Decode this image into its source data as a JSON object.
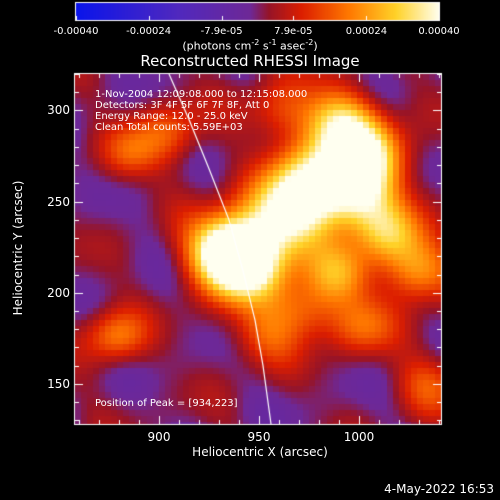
{
  "chart_data": {
    "type": "heatmap",
    "title": "Reconstructed RHESSI Image",
    "xlabel": "Heliocentric X (arcsec)",
    "ylabel": "Heliocentric Y (arcsec)",
    "xlim": [
      858,
      1041
    ],
    "ylim": [
      128,
      320
    ],
    "x_ticks": [
      "900",
      "950",
      "1000"
    ],
    "x_tick_values": [
      900,
      950,
      1000
    ],
    "y_ticks": [
      "150",
      "200",
      "250",
      "300"
    ],
    "y_tick_values": [
      150,
      200,
      250,
      300
    ],
    "colorbar": {
      "min": -0.0004,
      "max": 0.0004,
      "tick_labels": [
        "-0.00040",
        "-0.00024",
        "-7.9e-05",
        "7.9e-05",
        "0.00024",
        "0.00040"
      ],
      "tick_values": [
        -0.0004,
        -0.00024,
        -7.9e-05,
        7.9e-05,
        0.00024,
        0.0004
      ],
      "units_text": "(photons cm",
      "units_exp1": "-2",
      "units_mid": " s",
      "units_exp2": "-1",
      "units_end": " asec",
      "units_exp3": "-2",
      "units_close": ")"
    },
    "annotations": [
      "1-Nov-2004 12:09:08.000 to 12:15:08.000",
      "Detectors: 3F 4F 5F 6F 7F 8F, Att 0",
      "Energy Range: 12.0 - 25.0 keV",
      "Clean     Total counts: 5.59E+03"
    ],
    "peak_label": "Position of Peak = [934,223]",
    "peak": [
      934,
      223
    ],
    "limb_points": [
      [
        905,
        320
      ],
      [
        915,
        295
      ],
      [
        925,
        268
      ],
      [
        935,
        240
      ],
      [
        942,
        212
      ],
      [
        948,
        185
      ],
      [
        952,
        160
      ],
      [
        956,
        128
      ]
    ],
    "grid": false,
    "legend": "colorbar top"
  },
  "footer": {
    "date": "4-May-2022 16:53"
  }
}
